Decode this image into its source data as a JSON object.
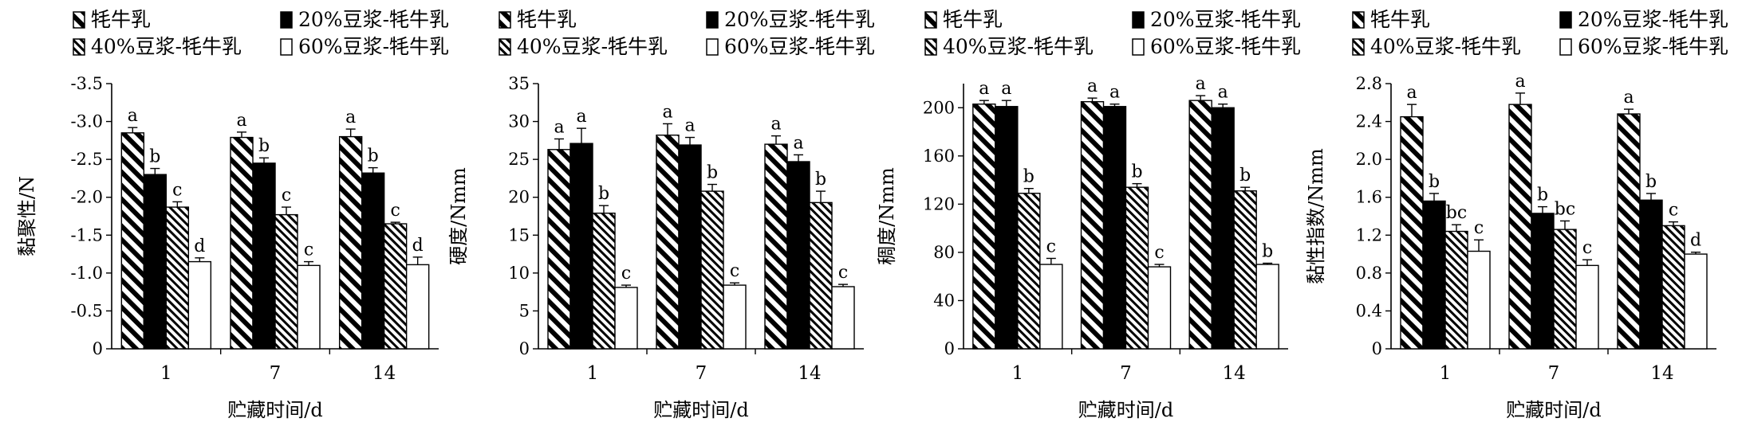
{
  "colors": {
    "ink": "#000000",
    "background": "#ffffff"
  },
  "series_styles": [
    {
      "fill": "wide-diagonal-hatch"
    },
    {
      "fill": "solid-black"
    },
    {
      "fill": "narrow-diagonal-hatch"
    },
    {
      "fill": "white"
    }
  ],
  "chart_data": [
    {
      "type": "bar",
      "categories": [
        "1",
        "7",
        "14"
      ],
      "xlabel": "贮藏时间/d",
      "ylabel": "黏聚性/N",
      "ylim": [
        0,
        -3.5
      ],
      "yticks": [
        "0",
        "-0.5",
        "-1.0",
        "-1.5",
        "-2.0",
        "-2.5",
        "-3.0",
        "-3.5"
      ],
      "legend_position": "top",
      "series": [
        {
          "name": "牦牛乳",
          "values": [
            -2.85,
            -2.79,
            -2.8
          ],
          "errors": [
            0.07,
            0.07,
            0.1
          ],
          "letters": [
            "a",
            "a",
            "a"
          ]
        },
        {
          "name": "20%豆浆-牦牛乳",
          "values": [
            -2.3,
            -2.45,
            -2.32
          ],
          "errors": [
            0.08,
            0.07,
            0.07
          ],
          "letters": [
            "b",
            "b",
            "b"
          ]
        },
        {
          "name": "40%豆浆-牦牛乳",
          "values": [
            -1.87,
            -1.77,
            -1.65
          ],
          "errors": [
            0.07,
            0.1,
            0.02
          ],
          "letters": [
            "c",
            "c",
            "c"
          ]
        },
        {
          "name": "60%豆浆-牦牛乳",
          "values": [
            -1.15,
            -1.1,
            -1.11
          ],
          "errors": [
            0.05,
            0.05,
            0.1
          ],
          "letters": [
            "d",
            "c",
            "d"
          ]
        }
      ]
    },
    {
      "type": "bar",
      "categories": [
        "1",
        "7",
        "14"
      ],
      "xlabel": "贮藏时间/d",
      "ylabel": "硬度/Nmm",
      "ylim": [
        0,
        35
      ],
      "yticks": [
        "0",
        "5",
        "10",
        "15",
        "20",
        "25",
        "30",
        "35"
      ],
      "legend_position": "top",
      "series": [
        {
          "name": "牦牛乳",
          "values": [
            26.3,
            28.2,
            27.0
          ],
          "errors": [
            1.4,
            1.5,
            1.1
          ],
          "letters": [
            "a",
            "a",
            "a"
          ]
        },
        {
          "name": "20%豆浆-牦牛乳",
          "values": [
            27.1,
            26.9,
            24.7
          ],
          "errors": [
            2.0,
            1.0,
            0.9
          ],
          "letters": [
            "a",
            "a",
            "a"
          ]
        },
        {
          "name": "40%豆浆-牦牛乳",
          "values": [
            17.9,
            20.8,
            19.3
          ],
          "errors": [
            1.0,
            0.9,
            1.5
          ],
          "letters": [
            "b",
            "b",
            "b"
          ]
        },
        {
          "name": "60%豆浆-牦牛乳",
          "values": [
            8.1,
            8.4,
            8.2
          ],
          "errors": [
            0.3,
            0.3,
            0.3
          ],
          "letters": [
            "c",
            "c",
            "c"
          ]
        }
      ]
    },
    {
      "type": "bar",
      "categories": [
        "1",
        "7",
        "14"
      ],
      "xlabel": "贮藏时间/d",
      "ylabel": "稠度/Nmm",
      "ylim": [
        0,
        220
      ],
      "yticks": [
        "0",
        "40",
        "80",
        "120",
        "160",
        "200"
      ],
      "legend_position": "top",
      "series": [
        {
          "name": "牦牛乳",
          "values": [
            203,
            205,
            206
          ],
          "errors": [
            3,
            3,
            4
          ],
          "letters": [
            "a",
            "a",
            "a"
          ]
        },
        {
          "name": "20%豆浆-牦牛乳",
          "values": [
            201,
            201,
            200
          ],
          "errors": [
            5,
            2,
            3
          ],
          "letters": [
            "a",
            "a",
            "a"
          ]
        },
        {
          "name": "40%豆浆-牦牛乳",
          "values": [
            129,
            134,
            131
          ],
          "errors": [
            4,
            3,
            3
          ],
          "letters": [
            "b",
            "b",
            "b"
          ]
        },
        {
          "name": "60%豆浆-牦牛乳",
          "values": [
            70,
            68,
            70
          ],
          "errors": [
            5,
            2,
            1
          ],
          "letters": [
            "c",
            "c",
            "b"
          ]
        }
      ]
    },
    {
      "type": "bar",
      "categories": [
        "1",
        "7",
        "14"
      ],
      "xlabel": "贮藏时间/d",
      "ylabel": "黏性指数/Nmm",
      "ylim": [
        0,
        2.8
      ],
      "yticks": [
        "0",
        "0.4",
        "0.8",
        "1.2",
        "1.6",
        "2.0",
        "2.4",
        "2.8"
      ],
      "legend_position": "top",
      "series": [
        {
          "name": "牦牛乳",
          "values": [
            2.45,
            2.58,
            2.48
          ],
          "errors": [
            0.13,
            0.12,
            0.05
          ],
          "letters": [
            "a",
            "a",
            "a"
          ]
        },
        {
          "name": "20%豆浆-牦牛乳",
          "values": [
            1.56,
            1.43,
            1.57
          ],
          "errors": [
            0.08,
            0.07,
            0.07
          ],
          "letters": [
            "b",
            "b",
            "b"
          ]
        },
        {
          "name": "40%豆浆-牦牛乳",
          "values": [
            1.24,
            1.26,
            1.3
          ],
          "errors": [
            0.07,
            0.09,
            0.04
          ],
          "letters": [
            "bc",
            "bc",
            "c"
          ]
        },
        {
          "name": "60%豆浆-牦牛乳",
          "values": [
            1.03,
            0.88,
            1.0
          ],
          "errors": [
            0.12,
            0.06,
            0.02
          ],
          "letters": [
            "c",
            "c",
            "d"
          ]
        }
      ]
    }
  ]
}
